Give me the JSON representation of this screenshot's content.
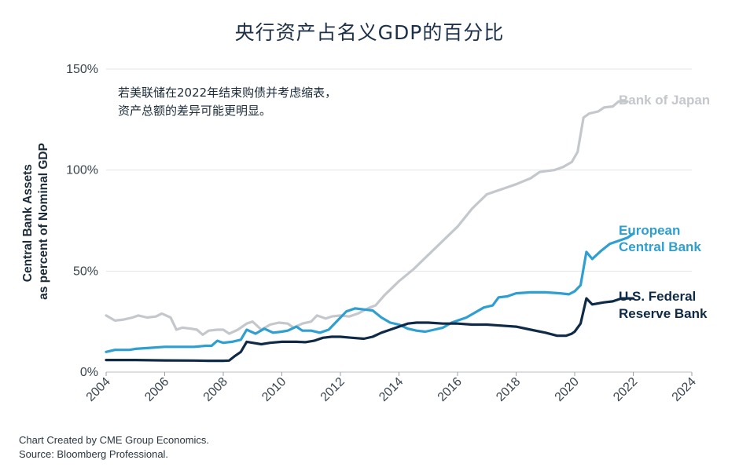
{
  "title": "央行资产占名义GDP的百分比",
  "footnote": {
    "line1": "Chart Created by CME Group Economics.",
    "line2": "Source: Bloomberg Professional."
  },
  "chart_data": {
    "type": "line",
    "ylabel": [
      "Central Bank Assets",
      "as percent of Nominal GDP"
    ],
    "xlim": [
      2004,
      2024
    ],
    "ylim": [
      0,
      150
    ],
    "x_ticks": [
      2004,
      2006,
      2008,
      2010,
      2012,
      2014,
      2016,
      2018,
      2020,
      2022,
      2024
    ],
    "x_tick_labels": [
      "2004",
      "2006",
      "2008",
      "2010",
      "2012",
      "2014",
      "2016",
      "2018",
      "2020",
      "2022",
      "2024"
    ],
    "y_ticks": [
      0,
      50,
      100,
      150
    ],
    "y_tick_labels": [
      "0%",
      "50%",
      "100%",
      "150%"
    ],
    "grid": "horizontal",
    "annotation": [
      "若美联储在2022年结束购债并考虑缩表，",
      "资产总额的差异可能更明显。"
    ],
    "series": [
      {
        "name": "Bank of Japan",
        "label_lines": [
          "Bank of Japan"
        ],
        "color": "#c4c8cc",
        "points": [
          [
            2004.0,
            28
          ],
          [
            2004.3,
            25.5
          ],
          [
            2004.6,
            26
          ],
          [
            2004.9,
            27
          ],
          [
            2005.1,
            28
          ],
          [
            2005.4,
            27
          ],
          [
            2005.7,
            27.5
          ],
          [
            2005.9,
            29
          ],
          [
            2006.2,
            27
          ],
          [
            2006.4,
            21
          ],
          [
            2006.6,
            22
          ],
          [
            2006.9,
            21.5
          ],
          [
            2007.1,
            21
          ],
          [
            2007.3,
            18.5
          ],
          [
            2007.5,
            20.5
          ],
          [
            2007.8,
            21
          ],
          [
            2008.0,
            21
          ],
          [
            2008.2,
            19
          ],
          [
            2008.5,
            21
          ],
          [
            2008.8,
            24
          ],
          [
            2009.0,
            25
          ],
          [
            2009.3,
            21
          ],
          [
            2009.6,
            23.5
          ],
          [
            2009.9,
            24.5
          ],
          [
            2010.2,
            24
          ],
          [
            2010.4,
            22
          ],
          [
            2010.7,
            24
          ],
          [
            2011.0,
            25
          ],
          [
            2011.2,
            28
          ],
          [
            2011.5,
            26.5
          ],
          [
            2011.7,
            27.5
          ],
          [
            2012.0,
            28
          ],
          [
            2012.3,
            27.5
          ],
          [
            2012.6,
            29
          ],
          [
            2013.0,
            32
          ],
          [
            2013.2,
            33
          ],
          [
            2013.5,
            38
          ],
          [
            2014.0,
            45
          ],
          [
            2014.5,
            51
          ],
          [
            2015.0,
            58
          ],
          [
            2015.5,
            65
          ],
          [
            2016.0,
            72
          ],
          [
            2016.5,
            81
          ],
          [
            2017.0,
            88
          ],
          [
            2017.5,
            90.5
          ],
          [
            2018.0,
            93
          ],
          [
            2018.5,
            96
          ],
          [
            2018.8,
            99
          ],
          [
            2019.0,
            99.5
          ],
          [
            2019.3,
            100
          ],
          [
            2019.6,
            101.5
          ],
          [
            2019.9,
            104
          ],
          [
            2020.1,
            109
          ],
          [
            2020.3,
            126
          ],
          [
            2020.5,
            128
          ],
          [
            2020.8,
            129
          ],
          [
            2021.0,
            131
          ],
          [
            2021.3,
            131.5
          ],
          [
            2021.5,
            134
          ],
          [
            2021.8,
            134
          ]
        ]
      },
      {
        "name": "European Central Bank",
        "label_lines": [
          "European",
          "Central Bank"
        ],
        "color": "#2e9fd0",
        "points": [
          [
            2004.0,
            10
          ],
          [
            2004.3,
            11
          ],
          [
            2004.8,
            11
          ],
          [
            2005.0,
            11.5
          ],
          [
            2005.5,
            12
          ],
          [
            2006.0,
            12.5
          ],
          [
            2006.5,
            12.5
          ],
          [
            2007.0,
            12.5
          ],
          [
            2007.4,
            13
          ],
          [
            2007.6,
            13
          ],
          [
            2007.8,
            15.5
          ],
          [
            2008.0,
            14.5
          ],
          [
            2008.3,
            15
          ],
          [
            2008.6,
            16
          ],
          [
            2008.8,
            21
          ],
          [
            2009.1,
            19
          ],
          [
            2009.4,
            21.5
          ],
          [
            2009.7,
            19.5
          ],
          [
            2010.0,
            20
          ],
          [
            2010.2,
            20.5
          ],
          [
            2010.5,
            22.5
          ],
          [
            2010.7,
            20.5
          ],
          [
            2011.0,
            20.5
          ],
          [
            2011.3,
            19.5
          ],
          [
            2011.6,
            21
          ],
          [
            2011.9,
            25.5
          ],
          [
            2012.2,
            30
          ],
          [
            2012.5,
            31.5
          ],
          [
            2012.8,
            31
          ],
          [
            2013.1,
            30.5
          ],
          [
            2013.4,
            27
          ],
          [
            2013.7,
            24.5
          ],
          [
            2014.0,
            23.5
          ],
          [
            2014.3,
            21.5
          ],
          [
            2014.6,
            20.5
          ],
          [
            2014.9,
            20
          ],
          [
            2015.2,
            21
          ],
          [
            2015.5,
            22
          ],
          [
            2015.8,
            24.5
          ],
          [
            2016.0,
            25.5
          ],
          [
            2016.3,
            27
          ],
          [
            2016.6,
            29.5
          ],
          [
            2016.9,
            32
          ],
          [
            2017.2,
            33
          ],
          [
            2017.4,
            37
          ],
          [
            2017.7,
            37.5
          ],
          [
            2018.0,
            39
          ],
          [
            2018.5,
            39.5
          ],
          [
            2019.0,
            39.5
          ],
          [
            2019.5,
            39
          ],
          [
            2019.8,
            38.5
          ],
          [
            2020.0,
            40
          ],
          [
            2020.2,
            43
          ],
          [
            2020.4,
            59.5
          ],
          [
            2020.6,
            56
          ],
          [
            2020.9,
            60
          ],
          [
            2021.2,
            63.5
          ],
          [
            2021.5,
            65
          ],
          [
            2021.8,
            66.5
          ],
          [
            2022.0,
            68.5
          ]
        ]
      },
      {
        "name": "U.S. Federal Reserve Bank",
        "label_lines": [
          "U.S. Federal",
          "Reserve Bank"
        ],
        "color": "#0f2a47",
        "points": [
          [
            2004.0,
            6
          ],
          [
            2005.0,
            6
          ],
          [
            2006.0,
            5.8
          ],
          [
            2007.0,
            5.7
          ],
          [
            2007.5,
            5.6
          ],
          [
            2008.0,
            5.6
          ],
          [
            2008.2,
            5.7
          ],
          [
            2008.4,
            8
          ],
          [
            2008.6,
            10
          ],
          [
            2008.8,
            15
          ],
          [
            2009.0,
            14.5
          ],
          [
            2009.3,
            13.8
          ],
          [
            2009.6,
            14.5
          ],
          [
            2010.0,
            15
          ],
          [
            2010.5,
            15
          ],
          [
            2010.8,
            14.8
          ],
          [
            2011.1,
            15.5
          ],
          [
            2011.4,
            17
          ],
          [
            2011.7,
            17.5
          ],
          [
            2012.0,
            17.5
          ],
          [
            2012.4,
            17
          ],
          [
            2012.8,
            16.5
          ],
          [
            2013.1,
            17.5
          ],
          [
            2013.4,
            19.5
          ],
          [
            2013.7,
            21
          ],
          [
            2014.0,
            22.5
          ],
          [
            2014.3,
            24
          ],
          [
            2014.6,
            24.5
          ],
          [
            2015.0,
            24.5
          ],
          [
            2015.5,
            24
          ],
          [
            2016.0,
            24
          ],
          [
            2016.5,
            23.5
          ],
          [
            2017.0,
            23.5
          ],
          [
            2017.5,
            23
          ],
          [
            2018.0,
            22.5
          ],
          [
            2018.5,
            21
          ],
          [
            2019.0,
            19.5
          ],
          [
            2019.4,
            18
          ],
          [
            2019.7,
            18
          ],
          [
            2019.9,
            19
          ],
          [
            2020.0,
            20
          ],
          [
            2020.2,
            24
          ],
          [
            2020.4,
            36.5
          ],
          [
            2020.6,
            33.5
          ],
          [
            2021.0,
            34.5
          ],
          [
            2021.3,
            35
          ],
          [
            2021.6,
            36.5
          ],
          [
            2022.0,
            36.5
          ]
        ]
      }
    ]
  }
}
